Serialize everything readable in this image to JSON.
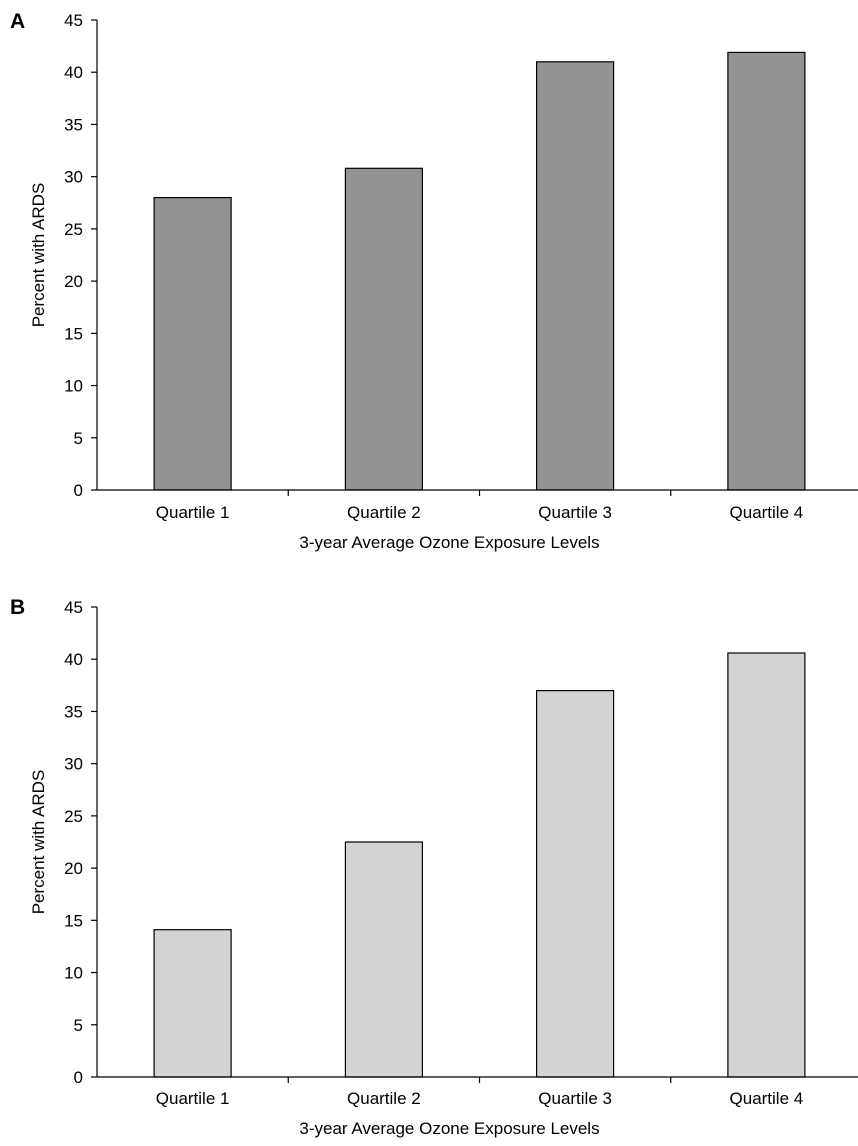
{
  "chart_data": [
    {
      "type": "bar",
      "panel_label": "A",
      "categories": [
        "Quartile 1",
        "Quartile 2",
        "Quartile 3",
        "Quartile 4"
      ],
      "values": [
        28,
        30.8,
        41,
        41.9
      ],
      "xlabel": "3-year Average Ozone Exposure Levels",
      "ylabel": "Percent with ARDS",
      "ylim": [
        0,
        45
      ],
      "yticks": [
        0,
        5,
        10,
        15,
        20,
        25,
        30,
        35,
        40,
        45
      ],
      "bar_color": "#939393",
      "grid": false,
      "legend": "none"
    },
    {
      "type": "bar",
      "panel_label": "B",
      "categories": [
        "Quartile 1",
        "Quartile 2",
        "Quartile 3",
        "Quartile 4"
      ],
      "values": [
        14.1,
        22.5,
        37,
        40.6
      ],
      "xlabel": "3-year Average Ozone Exposure Levels",
      "ylabel": "Percent with ARDS",
      "ylim": [
        0,
        45
      ],
      "yticks": [
        0,
        5,
        10,
        15,
        20,
        25,
        30,
        35,
        40,
        45
      ],
      "bar_color": "#d2d3d5",
      "grid": false,
      "legend": "none"
    }
  ]
}
